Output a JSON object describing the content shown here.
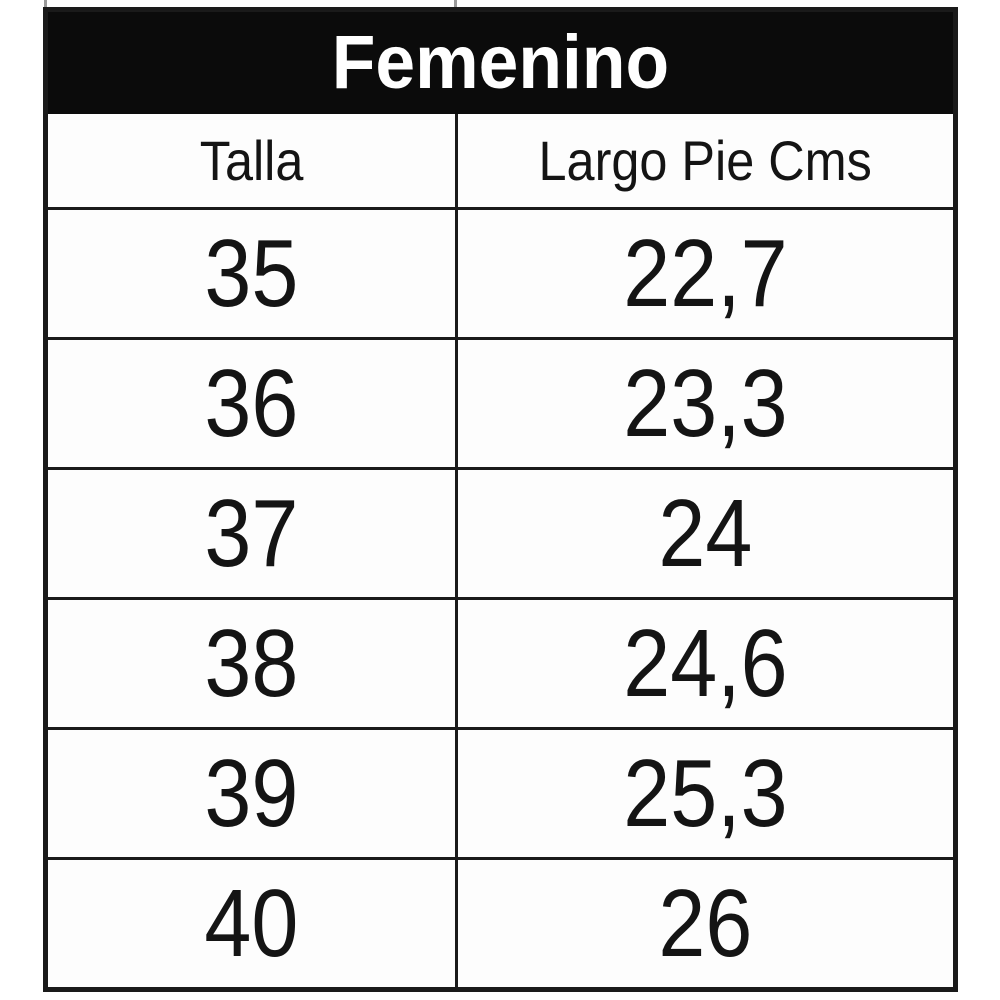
{
  "table": {
    "title": "Femenino",
    "columns": [
      "Talla",
      "Largo Pie Cms"
    ],
    "rows": [
      [
        "35",
        "22,7"
      ],
      [
        "36",
        "23,3"
      ],
      [
        "37",
        "24"
      ],
      [
        "38",
        "24,6"
      ],
      [
        "39",
        "25,3"
      ],
      [
        "40",
        "26"
      ]
    ]
  },
  "colors": {
    "title_band_bg": "#0b0b0b",
    "title_band_text": "#ffffff",
    "border": "#1a1a1a",
    "cell_text": "#141414",
    "page_bg": "#ffffff"
  }
}
